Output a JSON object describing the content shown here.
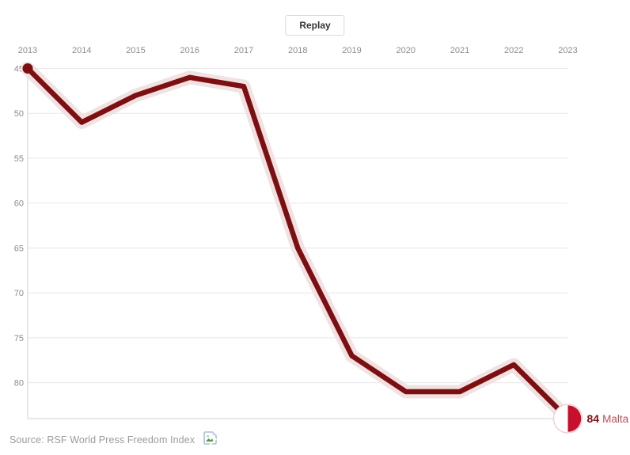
{
  "replay_button": {
    "label": "Replay"
  },
  "chart_data": {
    "type": "line",
    "x": [
      2013,
      2014,
      2015,
      2016,
      2017,
      2018,
      2019,
      2020,
      2021,
      2022,
      2023
    ],
    "series": [
      {
        "name": "Malta",
        "values": [
          45,
          51,
          48,
          46,
          47,
          65,
          77,
          81,
          81,
          78,
          84
        ]
      }
    ],
    "title": "",
    "xlabel": "",
    "ylabel": "",
    "x_axis_position": "top",
    "y_ticks": [
      45,
      50,
      55,
      60,
      65,
      70,
      75,
      80
    ],
    "y_range": [
      45,
      84
    ],
    "y_inverted": true,
    "grid": true,
    "legend": "none",
    "start_marker": "filled-dot",
    "end_marker": "half-filled-progress-circle",
    "end_label": {
      "value": "84",
      "name": "Malta"
    }
  },
  "source": {
    "text": "Source: RSF World Press Freedom Index"
  },
  "icons": {
    "source_icon": "broken-image-icon",
    "end_marker_icon": "half-progress-circle-icon"
  },
  "colors": {
    "line": "#7d0f12",
    "halo": "#f1e2e2",
    "marker_red": "#c8102e",
    "marker_ring": "#edccd1",
    "end_label_value": "#7a1014",
    "end_label_name": "#bd4e56",
    "gridline": "#e7e7e7",
    "axis_domain": "#d2d2d2",
    "tick_label": "#8c8c8c",
    "source_text": "#9b9b9b"
  }
}
